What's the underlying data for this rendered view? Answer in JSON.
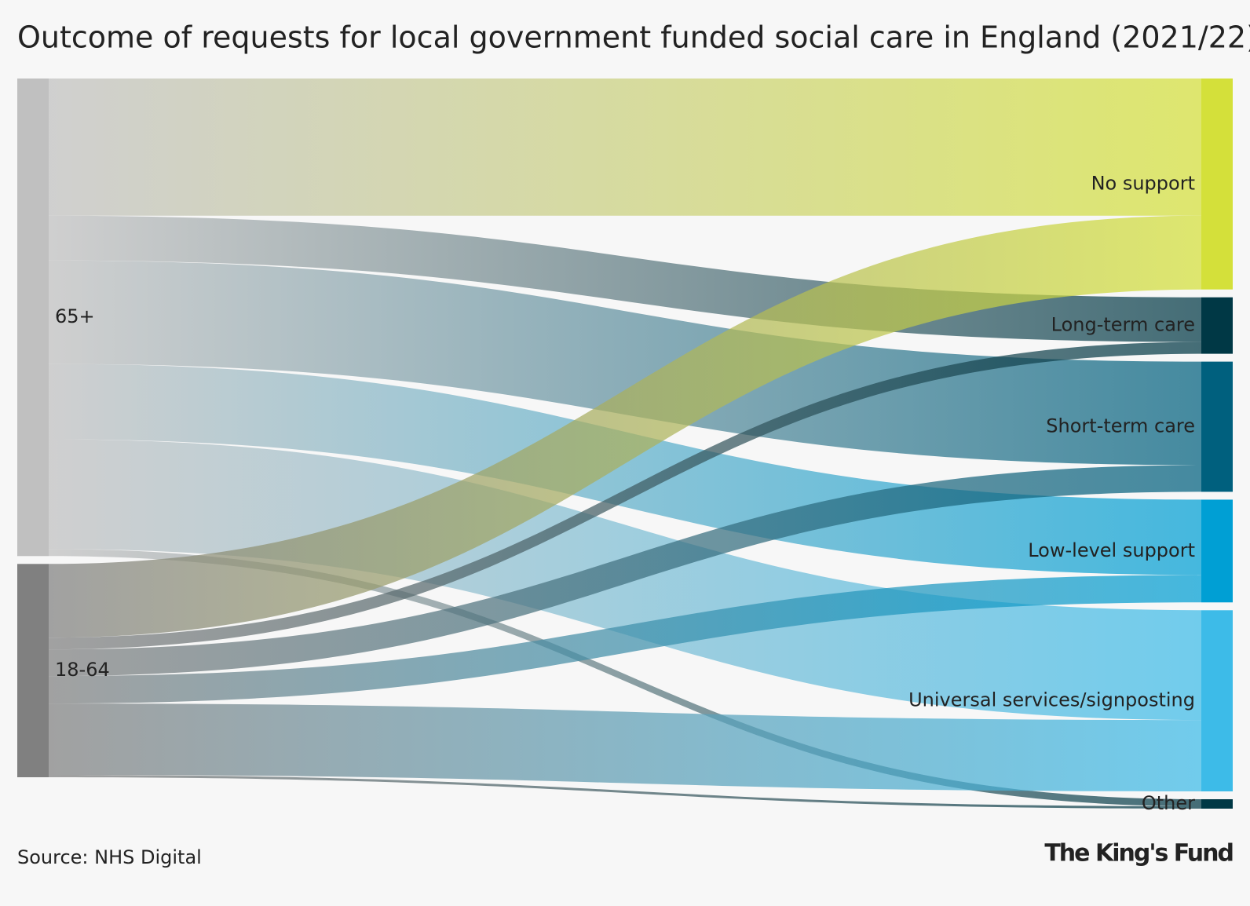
{
  "chart_data": {
    "type": "sankey",
    "title": "Outcome of requests for local government funded social care in England (2021/22)",
    "source": "Source: NHS Digital",
    "logo": "The King's Fund",
    "nodes": [
      {
        "name": "65+",
        "color": "#c0c0c0"
      },
      {
        "name": "18-64",
        "color": "#808080"
      },
      {
        "name": "No support",
        "color": "#d4e03a"
      },
      {
        "name": "Long-term care",
        "color": "#003845"
      },
      {
        "name": "Short-term care",
        "color": "#00607e"
      },
      {
        "name": "Low-level support",
        "color": "#009fd4"
      },
      {
        "name": "Universal services/signposting",
        "color": "#3dbbe8"
      },
      {
        "name": "Other",
        "color": "#003845"
      }
    ],
    "links": [
      {
        "source": 0,
        "target": 2,
        "value": 175
      },
      {
        "source": 0,
        "target": 3,
        "value": 57
      },
      {
        "source": 0,
        "target": 4,
        "value": 132
      },
      {
        "source": 0,
        "target": 5,
        "value": 96
      },
      {
        "source": 0,
        "target": 6,
        "value": 140
      },
      {
        "source": 0,
        "target": 7,
        "value": 9
      },
      {
        "source": 1,
        "target": 2,
        "value": 94
      },
      {
        "source": 1,
        "target": 3,
        "value": 15
      },
      {
        "source": 1,
        "target": 4,
        "value": 34
      },
      {
        "source": 1,
        "target": 5,
        "value": 35
      },
      {
        "source": 1,
        "target": 6,
        "value": 91
      },
      {
        "source": 1,
        "target": 7,
        "value": 3
      }
    ]
  }
}
